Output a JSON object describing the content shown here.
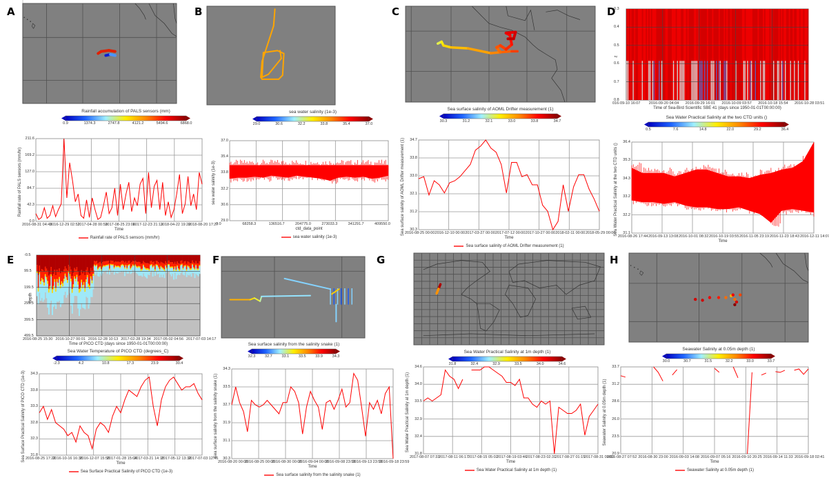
{
  "colors": {
    "track_orange": "#ffa500",
    "line": "#ff0000",
    "map_bg": "#808080",
    "grid": "#505050",
    "plot_grid": "#999999",
    "heat_bg": "#c0c0c0"
  },
  "colormap": [
    "#0000c0",
    "#1e64ff",
    "#9fefff",
    "#ffee00",
    "#ff8800",
    "#ff0000",
    "#8b0000"
  ],
  "panels": [
    {
      "label": "A",
      "top": "map",
      "map_id": "pacific-drifter",
      "colorbar": {
        "title": "Rainfall accumulation of PALS sensors (mm)",
        "ticks": [
          "0.9",
          "1374.3",
          "2747.8",
          "4121.2",
          "5494.6",
          "6868.0"
        ]
      },
      "chart_data": {
        "type": "line",
        "ylabel": "Rainfall rate of PALS sensors (mm/hr)",
        "xlabel": "Time",
        "legend": "Rainfall rate of PALS sensors (mm/hr)",
        "ylim": [
          0.0,
          211.6
        ],
        "yticks": [
          "0.0",
          "42.3",
          "84.7",
          "127.0",
          "169.2",
          "211.6"
        ],
        "xticks": [
          "2016-08-31 04:45",
          "2016-12-29 02:52",
          "2017-04-28 00:59",
          "2017-08-25 23:06",
          "2017-12-23 21:13",
          "2018-04-22 19:20",
          "2018-08-20 17:27"
        ],
        "series": [
          {
            "name": "Rainfall rate of PALS sensors (mm/hr)",
            "values": [
              20,
              5,
              10,
              35,
              8,
              15,
              40,
              12,
              30,
              45,
              211,
              60,
              150,
              105,
              50,
              70,
              15,
              8,
              55,
              10,
              60,
              30,
              5,
              10,
              40,
              75,
              20,
              35,
              85,
              15,
              95,
              30,
              70,
              100,
              25,
              60,
              40,
              95,
              110,
              20,
              125,
              35,
              90,
              105,
              30,
              100,
              15,
              50,
              10,
              30,
              70,
              120,
              20,
              45,
              115,
              40,
              70,
              30,
              125,
              95
            ]
          }
        ]
      }
    },
    {
      "label": "B",
      "top": "map",
      "map_id": "box-track",
      "colorbar": {
        "title": "sea water salinity (1e-3)",
        "ticks": [
          "29.0",
          "30.6",
          "32.2",
          "33.8",
          "35.4",
          "37.0"
        ]
      },
      "chart_data": {
        "type": "area",
        "ylabel": "sea water salinity (1e-3)",
        "xlabel": "ctd_data_point",
        "legend": "sea water salinity (1e-3)",
        "ylim": [
          29.0,
          37.0
        ],
        "yticks": [
          "29.0",
          "30.6",
          "32.2",
          "33.8",
          "35.4",
          "37.0"
        ],
        "xticks": [
          "0.0",
          "68258.3",
          "136516.7",
          "204775.0",
          "273033.3",
          "341291.7",
          "409550.0"
        ],
        "series": [
          {
            "name": "sea water salinity (1e-3)",
            "band_low": [
              33.2,
              33.3,
              33.3,
              33.4,
              33.3,
              33.5,
              33.4,
              33.3,
              33.5,
              33.4,
              33.3,
              33.2,
              33.0,
              33.3,
              33.4,
              33.3,
              33.4,
              33.2,
              33.3,
              33.5
            ],
            "band_high": [
              34.55,
              34.55,
              34.55,
              34.55,
              34.55,
              34.55,
              34.55,
              34.55,
              34.55,
              34.55,
              34.55,
              34.55,
              34.55,
              34.55,
              34.55,
              34.55,
              34.55,
              34.55,
              34.55,
              34.55
            ]
          }
        ]
      }
    },
    {
      "label": "C",
      "top": "map",
      "map_id": "central-america",
      "colorbar": {
        "title": "Sea surface salinity of AOML Drifter measurement (1)",
        "ticks": [
          "30.3",
          "31.2",
          "32.1",
          "33.0",
          "33.8",
          "34.7"
        ]
      },
      "chart_data": {
        "type": "line",
        "ylabel": "Sea surface salinity of AOML Drifter measurement (1)",
        "xlabel": "Time",
        "legend": "Sea surface salinity of AOML Drifter measurement (1)",
        "ylim": [
          30.3,
          34.7
        ],
        "yticks": [
          "30.3",
          "31.2",
          "32.1",
          "33.0",
          "33.8",
          "34.7"
        ],
        "xticks": [
          "2016-08-25 00:00",
          "2016-12-10 00:00",
          "2017-03-27 00:00",
          "2017-07-12 00:00",
          "2017-10-27 00:00",
          "2018-02-11 00:00",
          "2018-05-29 00:00"
        ],
        "series": [
          {
            "name": "Sea surface salinity of AOML Drifter measurement (1)",
            "values": [
              32.8,
              32.9,
              32.0,
              32.7,
              32.5,
              32.1,
              32.6,
              32.7,
              32.9,
              33.2,
              33.5,
              34.2,
              34.4,
              34.7,
              34.3,
              34.1,
              33.5,
              32.1,
              33.6,
              33.6,
              32.9,
              33.0,
              32.5,
              32.5,
              31.5,
              31.2,
              30.3,
              30.7,
              32.5,
              31.2,
              32.4,
              33.0,
              33.0,
              32.3,
              31.8,
              31.2
            ]
          }
        ]
      }
    },
    {
      "label": "D",
      "top": "heatmap",
      "heat_id": "profile-salinity",
      "heatmap": {
        "ylabel": "z",
        "xlabel": "Time of Sea-Bird Scientific SBE 41 (days since 1950-01-01T00:00:00)",
        "yticks": [
          "0.3",
          "0.4",
          "0.5",
          "0.6",
          "0.7",
          "0.8"
        ],
        "xticks": [
          "016-09-10 16:07",
          "2016-09-20 04:04",
          "2016-09-29 16:01",
          "2016-10-09 03:57",
          "2016-10-18 15:54",
          "2016-10-28 03:51"
        ]
      },
      "colorbar": {
        "title": "Sea Water Practical Salinity at the two CTD units ()",
        "ticks": [
          "0.5",
          "7.6",
          "14.8",
          "22.0",
          "29.2",
          "36.4"
        ]
      },
      "chart_data": {
        "type": "area",
        "ylabel": "Sea Water Practical Salinity at the two CTD units ()",
        "xlabel": "Time",
        "legend": "",
        "ylim": [
          31.1,
          36.4
        ],
        "yticks": [
          "31.1",
          "32.2",
          "33.2",
          "34.3",
          "35.3",
          "36.4"
        ],
        "xticks": [
          "2016-08-26 17:44",
          "2016-09-13 13:08",
          "2016-10-01 08:32",
          "2016-10-19 03:55",
          "2016-11-05 23:19",
          "2016-11-23 18:43",
          "2016-12-11 14:07"
        ],
        "series": [
          {
            "name": "",
            "band_low": [
              33.0,
              32.9,
              32.9,
              32.8,
              32.9,
              32.7,
              32.6,
              32.6,
              32.5,
              32.5,
              32.6,
              32.4,
              32.2,
              31.7,
              32.4,
              32.5,
              32.4,
              32.3
            ],
            "band_high": [
              34.9,
              34.6,
              34.6,
              34.6,
              34.4,
              34.6,
              34.8,
              34.8,
              34.6,
              34.4,
              34.4,
              34.3,
              34.5,
              34.6,
              34.8,
              34.9,
              35.3,
              36.4
            ]
          }
        ]
      }
    },
    {
      "label": "E",
      "top": "heatmap",
      "heat_id": "depth-temperature",
      "heatmap": {
        "ylabel": "depth",
        "xlabel": "Time of PICO CTD (days since 1950-01-01T00:00:00)",
        "yticks": [
          "-0.5",
          "99.5",
          "199.5",
          "299.5",
          "399.5",
          "499.5"
        ],
        "xticks": [
          "2016-08-25 15:30",
          "2016-10-27 00:01",
          "2016-12-28 10:13",
          "2017-02-28 19:34",
          "2017-05-02 04:56",
          "2017-07-03 14:17"
        ]
      },
      "colorbar": {
        "title": "Sea Water Temperature of PICO CTD (degrees_C)",
        "ticks": [
          "-2.3",
          "4.2",
          "10.8",
          "17.3",
          "23.9",
          "30.4"
        ]
      },
      "chart_data": {
        "type": "line",
        "ylabel": "Sea Surface Practical Salinity of PICO CTD (1e-3)",
        "xlabel": "Time",
        "legend": "Sea Surface Practical Salinity of PICO CTD (1e-3)",
        "ylim": [
          31.8,
          34.3
        ],
        "yticks": [
          "31.8",
          "32.3",
          "32.8",
          "33.3",
          "33.8",
          "34.3"
        ],
        "xticks": [
          "2016-08-25 17:22",
          "2016-10-16 16:36",
          "2016-12-07 15:50",
          "2017-01-28 15:04",
          "2017-03-21 14:18",
          "2017-05-12 13:32",
          "2017-07-03 12:46"
        ],
        "series": [
          {
            "name": "Sea Surface Practical Salinity of PICO CTD (1e-3)",
            "values": [
              33.1,
              33.3,
              32.9,
              33.2,
              32.8,
              32.7,
              32.6,
              32.4,
              32.5,
              32.2,
              32.7,
              32.5,
              32.4,
              32.0,
              32.6,
              32.8,
              32.7,
              32.5,
              33.0,
              33.3,
              33.1,
              33.5,
              33.8,
              33.7,
              33.6,
              33.9,
              34.1,
              34.2,
              33.3,
              32.7,
              33.5,
              33.9,
              34.1,
              34.2,
              34.0,
              33.8,
              33.9,
              33.9,
              34.0,
              33.7,
              33.5
            ]
          }
        ]
      }
    },
    {
      "label": "F",
      "top": "map",
      "map_id": "snake-track",
      "colorbar": {
        "title": "Sea surface salinity from the salinity snake (1)",
        "ticks": [
          "32.3",
          "32.7",
          "33.1",
          "33.5",
          "33.9",
          "34.3"
        ]
      },
      "chart_data": {
        "type": "line",
        "ylabel": "Sea surface salinity from the salinity snake (1)",
        "xlabel": "Time",
        "legend": "Sea surface salinity from the salinity snake (1)",
        "ylim": [
          30.3,
          34.3
        ],
        "yticks": [
          "30.3",
          "31.1",
          "31.9",
          "32.7",
          "33.5",
          "34.3"
        ],
        "xticks": [
          "2016-08-20 00:00",
          "2016-08-25 00:00",
          "2016-08-30 00:00",
          "2016-09-04 00:00",
          "2016-09-08 23:59",
          "2016-09-13 23:59",
          "2016-09-18 23:59"
        ],
        "series": [
          {
            "name": "Sea surface salinity from the salinity snake (1)",
            "values": [
              32.7,
              33.5,
              32.8,
              32.4,
              31.5,
              32.9,
              32.7,
              32.6,
              32.7,
              32.9,
              32.7,
              32.5,
              32.3,
              32.8,
              32.8,
              33.5,
              33.3,
              32.8,
              31.4,
              32.6,
              33.3,
              32.9,
              32.6,
              31.6,
              32.8,
              32.9,
              32.5,
              32.9,
              33.4,
              32.6,
              32.8,
              34.1,
              33.8,
              32.6,
              31.3,
              32.8,
              32.5,
              32.9,
              32.3,
              33.2,
              33.5,
              30.3
            ]
          }
        ]
      }
    },
    {
      "label": "G",
      "top": "map",
      "map_id": "world",
      "colorbar": {
        "title": "Sea Water Practical Salinity at 1m depth (1)",
        "ticks": [
          "31.8",
          "32.4",
          "32.9",
          "33.5",
          "34.0",
          "34.6"
        ]
      },
      "chart_data": {
        "type": "line",
        "ylabel": "Sea Water Practical Salinity at 1m depth (1)",
        "xlabel": "Time",
        "legend": "Sea Water Practical Salinity at 1m depth (1)",
        "ylim": [
          31.8,
          34.6
        ],
        "yticks": [
          "31.8",
          "32.4",
          "32.9",
          "33.5",
          "34.0",
          "34.6"
        ],
        "xticks": [
          "2017-08-07 07:33",
          "2017-08-11 06:17",
          "2017-08-15 05:02",
          "2017-08-19 03:46",
          "2017-08-23 02:31",
          "2017-08-27 01:15",
          "2017-08-31 00:00"
        ],
        "series": [
          {
            "name": "Sea Water Practical Salinity at 1m depth (1)",
            "values": [
              33.5,
              33.6,
              33.5,
              33.6,
              33.7,
              34.5,
              34.3,
              34.2,
              33.9,
              34.2,
              null,
              34.5,
              34.5,
              34.5,
              34.6,
              34.6,
              34.5,
              34.4,
              34.3,
              34.1,
              34.1,
              34.0,
              34.2,
              33.6,
              33.6,
              33.4,
              33.3,
              33.5,
              33.4,
              33.5,
              31.8,
              33.3,
              33.2,
              33.1,
              33.1,
              33.2,
              33.4,
              32.4,
              33.0,
              33.2,
              33.4
            ]
          }
        ]
      }
    },
    {
      "label": "H",
      "top": "map",
      "map_id": "pacific-dots",
      "colorbar": {
        "title": "Seawater Salinity at 0.05m depth (1)",
        "ticks": [
          "30.0",
          "30.7",
          "31.5",
          "32.2",
          "33.0",
          "33.7"
        ]
      },
      "chart_data": {
        "type": "line",
        "ylabel": "Seawater Salinity at 0.05m depth (1)",
        "xlabel": "Time",
        "legend": "Seawater Salinity at 0.05m depth (1)",
        "ylim": [
          20.9,
          33.7
        ],
        "yticks": [
          "20.9",
          "23.5",
          "26.0",
          "28.6",
          "31.2",
          "33.7"
        ],
        "xticks": [
          "2016-08-27 07:52",
          "2016-08-30 23:00",
          "2016-09-03 14:08",
          "2016-09-07 05:16",
          "2016-09-10 20:25",
          "2016-09-14 11:33",
          "2016-09-18 02:41"
        ],
        "series": [
          {
            "name": "Seawater Salinity at 0.05m depth (1)",
            "values": [
              32.4,
              32.2,
              null,
              32.9,
              null,
              33.0,
              null,
              33.7,
              32.9,
              31.6,
              null,
              32.5,
              33.3,
              null,
              null,
              null,
              32.3,
              null,
              null,
              null,
              33.5,
              32.9,
              null,
              null,
              33.7,
              32.1,
              null,
              20.9,
              32.9,
              null,
              32.5,
              32.8,
              null,
              33.0,
              32.9,
              33.2,
              null,
              33.2,
              33.4,
              32.6,
              33.4
            ]
          }
        ]
      }
    }
  ]
}
